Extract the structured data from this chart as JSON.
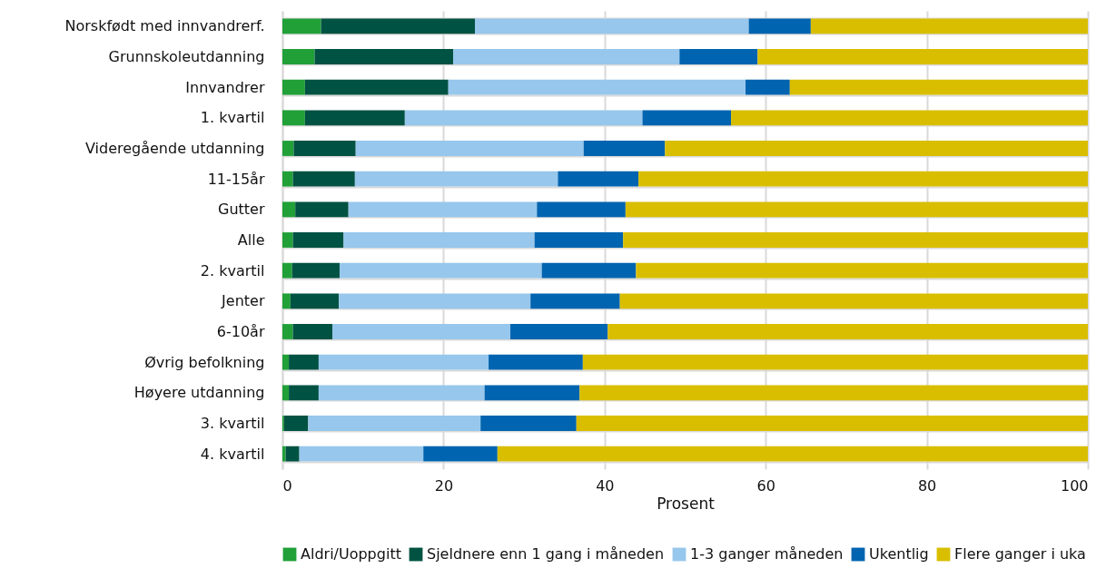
{
  "chart_data": {
    "type": "bar",
    "orientation": "horizontal",
    "stacked": true,
    "xlabel": "Prosent",
    "xlim": [
      0,
      100
    ],
    "xticks": [
      0,
      20,
      40,
      60,
      80,
      100
    ],
    "grid": true,
    "legend": "bottom",
    "categories": [
      "Norskfødt med innvandrerf.",
      "Grunnskoleutdanning",
      "Innvandrer",
      "1. kvartil",
      "Videregående utdanning",
      "11-15år",
      "Gutter",
      "Alle",
      "2. kvartil",
      "Jenter",
      "6-10år",
      "Øvrig befolkning",
      "Høyere utdanning",
      "3. kvartil",
      "4. kvartil"
    ],
    "series": [
      {
        "name": "Aldri/Uoppgitt",
        "color": "#21a038",
        "values": [
          4.8,
          4.0,
          2.8,
          2.8,
          1.4,
          1.3,
          1.6,
          1.3,
          1.2,
          1.0,
          1.3,
          0.8,
          0.8,
          0.2,
          0.4
        ]
      },
      {
        "name": "Sjeldnere enn 1 gang i måneden",
        "color": "#005242",
        "values": [
          19.1,
          17.2,
          17.8,
          12.4,
          7.7,
          7.7,
          6.6,
          6.3,
          5.9,
          6.0,
          4.9,
          3.7,
          3.7,
          3.0,
          1.7
        ]
      },
      {
        "name": "1-3 ganger måneden",
        "color": "#97c7ec",
        "values": [
          34.0,
          28.1,
          36.9,
          29.5,
          28.3,
          25.2,
          23.4,
          23.7,
          25.1,
          23.8,
          22.1,
          21.1,
          20.6,
          21.4,
          15.4
        ]
      },
      {
        "name": "Ukentlig",
        "color": "#0064b0",
        "values": [
          7.7,
          9.7,
          5.5,
          11.0,
          10.1,
          10.0,
          11.0,
          11.0,
          11.7,
          11.1,
          12.1,
          11.7,
          11.8,
          11.9,
          9.2
        ]
      },
      {
        "name": "Flere ganger i uka",
        "color": "#d9be00",
        "values": [
          34.4,
          41.0,
          37.0,
          44.3,
          52.5,
          55.8,
          57.4,
          57.7,
          56.1,
          58.1,
          59.6,
          62.7,
          63.1,
          63.5,
          73.3
        ]
      }
    ]
  }
}
